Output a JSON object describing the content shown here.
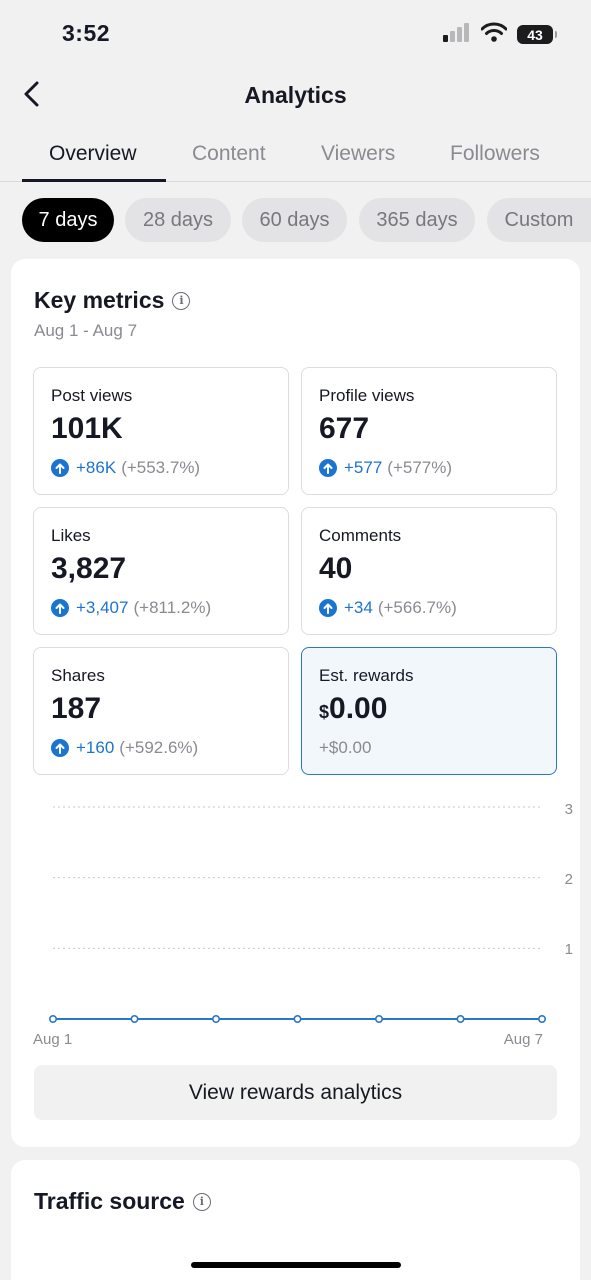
{
  "status_bar": {
    "time": "3:52",
    "battery": "43"
  },
  "header": {
    "title": "Analytics"
  },
  "tabs": [
    {
      "label": "Overview",
      "active": true
    },
    {
      "label": "Content",
      "active": false
    },
    {
      "label": "Viewers",
      "active": false
    },
    {
      "label": "Followers",
      "active": false
    }
  ],
  "date_filters": [
    {
      "label": "7 days",
      "active": true
    },
    {
      "label": "28 days",
      "active": false
    },
    {
      "label": "60 days",
      "active": false
    },
    {
      "label": "365 days",
      "active": false
    },
    {
      "label": "Custom",
      "active": false
    }
  ],
  "key_metrics": {
    "title": "Key metrics",
    "date_range": "Aug 1 - Aug 7",
    "items": [
      {
        "label": "Post views",
        "value": "101K",
        "delta": "+86K",
        "pct": "(+553.7%)"
      },
      {
        "label": "Profile views",
        "value": "677",
        "delta": "+577",
        "pct": "(+577%)"
      },
      {
        "label": "Likes",
        "value": "3,827",
        "delta": "+3,407",
        "pct": "(+811.2%)"
      },
      {
        "label": "Comments",
        "value": "40",
        "delta": "+34",
        "pct": "(+566.7%)"
      },
      {
        "label": "Shares",
        "value": "187",
        "delta": "+160",
        "pct": "(+592.6%)"
      },
      {
        "label": "Est. rewards",
        "currency": "$",
        "value": "0.00",
        "change": "+$0.00",
        "selected": true
      }
    ]
  },
  "chart_data": {
    "type": "line",
    "title": "",
    "xlabel": "",
    "ylabel": "",
    "x_tick_labels": [
      "Aug 1",
      "Aug 7"
    ],
    "y_ticks": [
      1,
      2,
      3
    ],
    "ylim": [
      0,
      3
    ],
    "series": [
      {
        "x": [
          "Aug 1",
          "Aug 2",
          "Aug 3",
          "Aug 4",
          "Aug 5",
          "Aug 6",
          "Aug 7"
        ],
        "values": [
          0,
          0,
          0,
          0,
          0,
          0,
          0
        ]
      }
    ],
    "grid": true,
    "line_color": "#2a77c8"
  },
  "rewards_button": {
    "label": "View rewards analytics"
  },
  "traffic_source": {
    "title": "Traffic source"
  },
  "colors": {
    "accent": "#1c74d1",
    "selected_border": "#2a77c8"
  }
}
